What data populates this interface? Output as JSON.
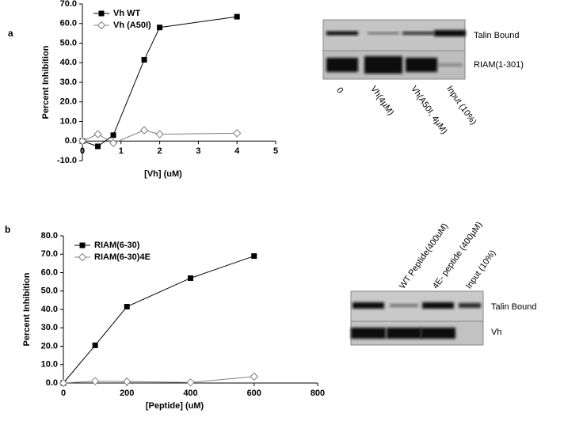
{
  "panels": [
    "a",
    "b"
  ],
  "chart_data": [
    {
      "type": "line",
      "ylabel": "Percent Inhibition",
      "xlabel": "[Vh] (uM)",
      "xlim": [
        0,
        5
      ],
      "xticks": [
        0,
        1,
        2,
        3,
        4,
        5
      ],
      "ylim": [
        -10,
        70
      ],
      "yticks": [
        {
          "value": -10,
          "label": "-10.0"
        },
        {
          "value": 0,
          "label": "0.0"
        },
        {
          "value": 10,
          "label": "10.0"
        },
        {
          "value": 20,
          "label": "20.0"
        },
        {
          "value": 30,
          "label": "30.0"
        },
        {
          "value": 40,
          "label": "40.0"
        },
        {
          "value": 50,
          "label": "50.0"
        },
        {
          "value": 60,
          "label": "60.0"
        },
        {
          "value": 70,
          "label": "70.0"
        }
      ],
      "legend": "top-left",
      "series": [
        {
          "name": "Vh WT",
          "color": "#000000",
          "marker": "square",
          "x": [
            0,
            0.4,
            0.8,
            1.6,
            2,
            4
          ],
          "values": [
            0,
            -2.7,
            3,
            41.5,
            58,
            63.5
          ]
        },
        {
          "name": "Vh (A50I)",
          "color": "#808080",
          "marker": "diamond",
          "x": [
            0,
            0.4,
            0.8,
            1.6,
            2,
            4
          ],
          "values": [
            0,
            3.5,
            -1,
            5.5,
            3.5,
            4
          ]
        }
      ]
    },
    {
      "type": "line",
      "ylabel": "Percent Inhibition",
      "xlabel": "[Peptide] (uM)",
      "xlim": [
        0,
        800
      ],
      "xticks": [
        0,
        200,
        400,
        600,
        800
      ],
      "ylim": [
        0,
        80
      ],
      "yticks": [
        {
          "value": 0,
          "label": "0.0"
        },
        {
          "value": 10,
          "label": "10.0"
        },
        {
          "value": 20,
          "label": "20.0"
        },
        {
          "value": 30,
          "label": "30.0"
        },
        {
          "value": 40,
          "label": "40.0"
        },
        {
          "value": 50,
          "label": "50.0"
        },
        {
          "value": 60,
          "label": "60.0"
        },
        {
          "value": 70,
          "label": "70.0"
        },
        {
          "value": 80,
          "label": "80.0"
        }
      ],
      "legend": "top-left",
      "series": [
        {
          "name": "RIAM(6-30)",
          "color": "#000000",
          "marker": "square",
          "x": [
            0,
            100,
            200,
            400,
            600
          ],
          "values": [
            0,
            20.5,
            41.5,
            57,
            69
          ]
        },
        {
          "name": "RIAM(6-30)4E",
          "color": "#808080",
          "marker": "diamond",
          "x": [
            0,
            100,
            200,
            400,
            600
          ],
          "values": [
            0,
            1,
            0.8,
            0.3,
            3.5
          ]
        }
      ]
    }
  ],
  "gels": [
    {
      "rows": [
        "Talin Bound",
        "RIAM(1-301)"
      ],
      "lanes": [
        "0",
        "Vh(4µM)",
        "Vh(A50I, 4µM)",
        "Input (10%)"
      ]
    },
    {
      "rows": [
        "Talin Bound",
        "Vh"
      ],
      "lanes": [
        "WT Peptide(400uM)",
        "4E- peptide (400µM)",
        "Input (10%)"
      ]
    }
  ]
}
